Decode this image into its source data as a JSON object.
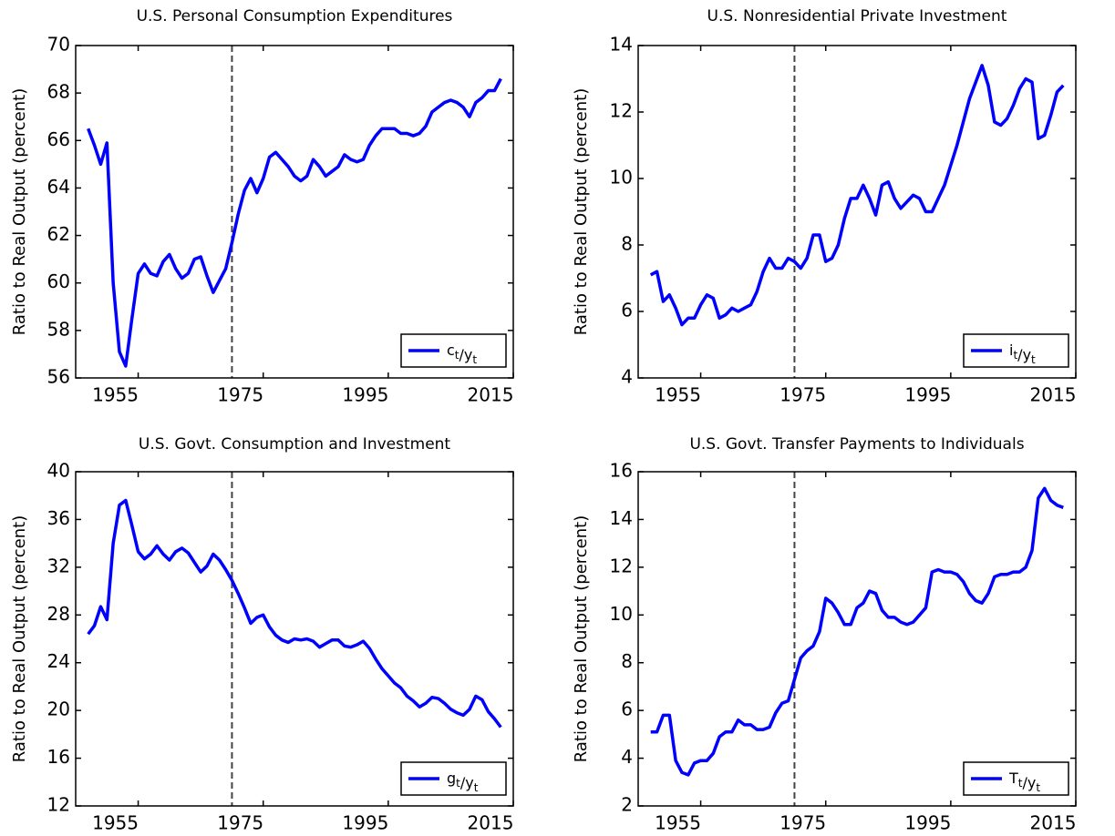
{
  "chart_data": [
    {
      "type": "line",
      "title": "U.S. Personal Consumption Expenditures",
      "ylabel": "Ratio to Real Output (percent)",
      "x": [
        1947,
        1948,
        1949,
        1950,
        1951,
        1952,
        1953,
        1954,
        1955,
        1956,
        1957,
        1958,
        1959,
        1960,
        1961,
        1962,
        1963,
        1964,
        1965,
        1966,
        1967,
        1968,
        1969,
        1970,
        1971,
        1972,
        1973,
        1974,
        1975,
        1976,
        1977,
        1978,
        1979,
        1980,
        1981,
        1982,
        1983,
        1984,
        1985,
        1986,
        1987,
        1988,
        1989,
        1990,
        1991,
        1992,
        1993,
        1994,
        1995,
        1996,
        1997,
        1998,
        1999,
        2000,
        2001,
        2002,
        2003,
        2004,
        2005,
        2006,
        2007,
        2008,
        2009,
        2010,
        2011,
        2012,
        2013
      ],
      "series": [
        {
          "name": "ct/yt",
          "color": "#0000ff",
          "values": [
            66.5,
            65.8,
            65.0,
            65.9,
            60.0,
            57.1,
            56.5,
            58.5,
            60.4,
            60.8,
            60.4,
            60.3,
            60.9,
            61.2,
            60.6,
            60.2,
            60.4,
            61.0,
            61.1,
            60.3,
            59.6,
            60.1,
            60.6,
            61.7,
            62.9,
            63.9,
            64.4,
            63.8,
            64.4,
            65.3,
            65.5,
            65.2,
            64.9,
            64.5,
            64.3,
            64.5,
            65.2,
            64.9,
            64.5,
            64.7,
            64.9,
            65.4,
            65.2,
            65.1,
            65.2,
            65.8,
            66.2,
            66.5,
            66.5,
            66.5,
            66.3,
            66.3,
            66.2,
            66.3,
            66.6,
            67.2,
            67.4,
            67.6,
            67.7,
            67.6,
            67.4,
            67.0,
            67.6,
            67.8,
            68.1,
            68.1,
            68.6
          ]
        }
      ],
      "xlim": [
        1945,
        2015
      ],
      "xticks": [
        1955,
        1975,
        1995,
        2015
      ],
      "ylim": [
        56,
        70
      ],
      "yticks": [
        56,
        58,
        60,
        62,
        64,
        66,
        68,
        70
      ],
      "vline": 1970,
      "legend": "lower right"
    },
    {
      "type": "line",
      "title": "U.S. Nonresidential Private Investment",
      "ylabel": "Ratio to Real Output (percent)",
      "x": [
        1947,
        1948,
        1949,
        1950,
        1951,
        1952,
        1953,
        1954,
        1955,
        1956,
        1957,
        1958,
        1959,
        1960,
        1961,
        1962,
        1963,
        1964,
        1965,
        1966,
        1967,
        1968,
        1969,
        1970,
        1971,
        1972,
        1973,
        1974,
        1975,
        1976,
        1977,
        1978,
        1979,
        1980,
        1981,
        1982,
        1983,
        1984,
        1985,
        1986,
        1987,
        1988,
        1989,
        1990,
        1991,
        1992,
        1993,
        1994,
        1995,
        1996,
        1997,
        1998,
        1999,
        2000,
        2001,
        2002,
        2003,
        2004,
        2005,
        2006,
        2007,
        2008,
        2009,
        2010,
        2011,
        2012,
        2013
      ],
      "series": [
        {
          "name": "it/yt",
          "color": "#0000ff",
          "values": [
            7.1,
            7.2,
            6.3,
            6.5,
            6.1,
            5.6,
            5.8,
            5.8,
            6.2,
            6.5,
            6.4,
            5.8,
            5.9,
            6.1,
            6.0,
            6.1,
            6.2,
            6.6,
            7.2,
            7.6,
            7.3,
            7.3,
            7.6,
            7.5,
            7.3,
            7.6,
            8.3,
            8.3,
            7.5,
            7.6,
            8.0,
            8.8,
            9.4,
            9.4,
            9.8,
            9.4,
            8.9,
            9.8,
            9.9,
            9.4,
            9.1,
            9.3,
            9.5,
            9.4,
            9.0,
            9.0,
            9.4,
            9.8,
            10.4,
            11.0,
            11.7,
            12.4,
            12.9,
            13.4,
            12.8,
            11.7,
            11.6,
            11.8,
            12.2,
            12.7,
            13.0,
            12.9,
            11.2,
            11.3,
            11.9,
            12.6,
            12.8
          ]
        }
      ],
      "xlim": [
        1945,
        2015
      ],
      "xticks": [
        1955,
        1975,
        1995,
        2015
      ],
      "ylim": [
        4,
        14
      ],
      "yticks": [
        4,
        6,
        8,
        10,
        12,
        14
      ],
      "vline": 1970,
      "legend": "lower right"
    },
    {
      "type": "line",
      "title": "U.S. Govt. Consumption and Investment",
      "ylabel": "Ratio to Real Output (percent)",
      "x": [
        1947,
        1948,
        1949,
        1950,
        1951,
        1952,
        1953,
        1954,
        1955,
        1956,
        1957,
        1958,
        1959,
        1960,
        1961,
        1962,
        1963,
        1964,
        1965,
        1966,
        1967,
        1968,
        1969,
        1970,
        1971,
        1972,
        1973,
        1974,
        1975,
        1976,
        1977,
        1978,
        1979,
        1980,
        1981,
        1982,
        1983,
        1984,
        1985,
        1986,
        1987,
        1988,
        1989,
        1990,
        1991,
        1992,
        1993,
        1994,
        1995,
        1996,
        1997,
        1998,
        1999,
        2000,
        2001,
        2002,
        2003,
        2004,
        2005,
        2006,
        2007,
        2008,
        2009,
        2010,
        2011,
        2012,
        2013
      ],
      "series": [
        {
          "name": "gt/yt",
          "color": "#0000ff",
          "values": [
            26.4,
            27.1,
            28.7,
            27.6,
            34.0,
            37.2,
            37.6,
            35.5,
            33.3,
            32.7,
            33.1,
            33.8,
            33.1,
            32.6,
            33.3,
            33.6,
            33.2,
            32.4,
            31.6,
            32.1,
            33.1,
            32.6,
            31.8,
            30.9,
            29.8,
            28.6,
            27.3,
            27.8,
            28.0,
            27.0,
            26.3,
            25.9,
            25.7,
            26.0,
            25.9,
            26.0,
            25.8,
            25.3,
            25.6,
            25.9,
            25.9,
            25.4,
            25.3,
            25.5,
            25.8,
            25.2,
            24.3,
            23.5,
            22.9,
            22.3,
            21.9,
            21.2,
            20.8,
            20.3,
            20.6,
            21.1,
            21.0,
            20.6,
            20.1,
            19.8,
            19.6,
            20.1,
            21.2,
            20.9,
            19.9,
            19.3,
            18.6
          ]
        }
      ],
      "xlim": [
        1945,
        2015
      ],
      "xticks": [
        1955,
        1975,
        1995,
        2015
      ],
      "ylim": [
        12,
        40
      ],
      "yticks": [
        12,
        16,
        20,
        24,
        28,
        32,
        36,
        40
      ],
      "vline": 1970,
      "legend": "lower right"
    },
    {
      "type": "line",
      "title": "U.S. Govt. Transfer Payments to Individuals",
      "ylabel": "Ratio to Real Output (percent)",
      "x": [
        1947,
        1948,
        1949,
        1950,
        1951,
        1952,
        1953,
        1954,
        1955,
        1956,
        1957,
        1958,
        1959,
        1960,
        1961,
        1962,
        1963,
        1964,
        1965,
        1966,
        1967,
        1968,
        1969,
        1970,
        1971,
        1972,
        1973,
        1974,
        1975,
        1976,
        1977,
        1978,
        1979,
        1980,
        1981,
        1982,
        1983,
        1984,
        1985,
        1986,
        1987,
        1988,
        1989,
        1990,
        1991,
        1992,
        1993,
        1994,
        1995,
        1996,
        1997,
        1998,
        1999,
        2000,
        2001,
        2002,
        2003,
        2004,
        2005,
        2006,
        2007,
        2008,
        2009,
        2010,
        2011,
        2012,
        2013
      ],
      "series": [
        {
          "name": "Tt/yt",
          "color": "#0000ff",
          "values": [
            5.1,
            5.1,
            5.8,
            5.8,
            3.9,
            3.4,
            3.3,
            3.8,
            3.9,
            3.9,
            4.2,
            4.9,
            5.1,
            5.1,
            5.6,
            5.4,
            5.4,
            5.2,
            5.2,
            5.3,
            5.9,
            6.3,
            6.4,
            7.3,
            8.2,
            8.5,
            8.7,
            9.3,
            10.7,
            10.5,
            10.1,
            9.6,
            9.6,
            10.3,
            10.5,
            11.0,
            10.9,
            10.2,
            9.9,
            9.9,
            9.7,
            9.6,
            9.7,
            10.0,
            10.3,
            11.8,
            11.9,
            11.8,
            11.8,
            11.7,
            11.4,
            10.9,
            10.6,
            10.5,
            10.9,
            11.6,
            11.7,
            11.7,
            11.8,
            11.8,
            12.0,
            12.7,
            14.9,
            15.3,
            14.8,
            14.6,
            14.5
          ]
        }
      ],
      "xlim": [
        1945,
        2015
      ],
      "xticks": [
        1955,
        1975,
        1995,
        2015
      ],
      "ylim": [
        2,
        16
      ],
      "yticks": [
        2,
        4,
        6,
        8,
        10,
        12,
        14,
        16
      ],
      "vline": 1970,
      "legend": "lower right"
    }
  ]
}
